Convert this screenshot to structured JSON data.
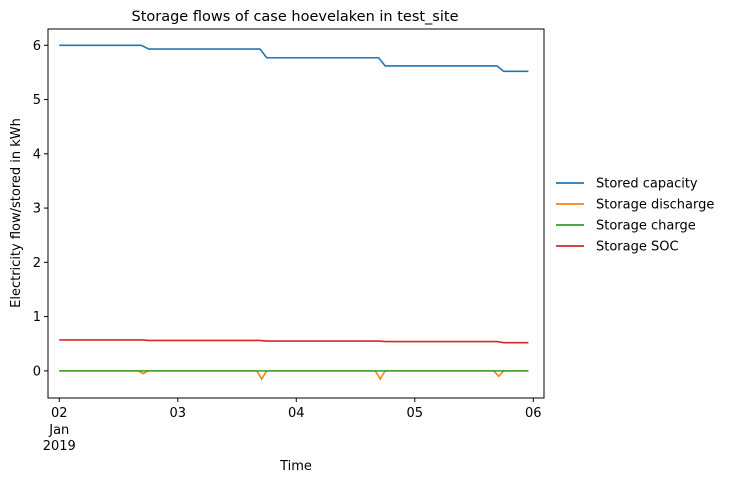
{
  "chart_data": {
    "type": "line",
    "title": "Storage flows of case hoevelaken in test_site",
    "xlabel": "Time",
    "ylabel": "Electricity flow/stored in kWh",
    "ylim": [
      -0.5,
      6.3
    ],
    "xlim": [
      "2019-01-01T21:43",
      "2019-01-06T02:10"
    ],
    "yticks": [
      0,
      1,
      2,
      3,
      4,
      5,
      6
    ],
    "xticks": [
      {
        "x": "2019-01-02T00:00",
        "label": "02"
      },
      {
        "x": "2019-01-03T00:00",
        "label": "03"
      },
      {
        "x": "2019-01-04T00:00",
        "label": "04"
      },
      {
        "x": "2019-01-05T00:00",
        "label": "05"
      },
      {
        "x": "2019-01-06T00:00",
        "label": "06"
      }
    ],
    "xtick_sub_labels": [
      "Jan",
      "2019"
    ],
    "grid": false,
    "legend_position": "outside-right",
    "series": [
      {
        "name": "Stored capacity",
        "color": "#1f77b4",
        "points": [
          [
            "2019-01-02T00:00",
            6.0
          ],
          [
            "2019-01-02T16:35",
            6.0
          ],
          [
            "2019-01-02T18:10",
            5.93
          ],
          [
            "2019-01-03T16:40",
            5.93
          ],
          [
            "2019-01-03T18:00",
            5.77
          ],
          [
            "2019-01-04T16:40",
            5.77
          ],
          [
            "2019-01-04T18:00",
            5.62
          ],
          [
            "2019-01-05T16:40",
            5.62
          ],
          [
            "2019-01-05T18:00",
            5.52
          ],
          [
            "2019-01-05T23:00",
            5.52
          ]
        ]
      },
      {
        "name": "Storage discharge",
        "color": "#ff7f0e",
        "points": [
          [
            "2019-01-02T00:00",
            0.0
          ],
          [
            "2019-01-02T16:00",
            0.0
          ],
          [
            "2019-01-02T17:00",
            -0.05
          ],
          [
            "2019-01-02T18:00",
            0.0
          ],
          [
            "2019-01-03T16:00",
            0.0
          ],
          [
            "2019-01-03T17:00",
            -0.15
          ],
          [
            "2019-01-03T18:00",
            0.0
          ],
          [
            "2019-01-04T16:00",
            0.0
          ],
          [
            "2019-01-04T17:00",
            -0.15
          ],
          [
            "2019-01-04T18:00",
            0.0
          ],
          [
            "2019-01-05T16:00",
            0.0
          ],
          [
            "2019-01-05T17:00",
            -0.1
          ],
          [
            "2019-01-05T18:00",
            0.0
          ],
          [
            "2019-01-05T23:00",
            0.0
          ]
        ]
      },
      {
        "name": "Storage charge",
        "color": "#2ca02c",
        "points": [
          [
            "2019-01-02T00:00",
            0.0
          ],
          [
            "2019-01-05T23:00",
            0.0
          ]
        ]
      },
      {
        "name": "Storage SOC",
        "color": "#d62728",
        "points": [
          [
            "2019-01-02T00:00",
            0.57
          ],
          [
            "2019-01-02T17:00",
            0.57
          ],
          [
            "2019-01-02T18:00",
            0.56
          ],
          [
            "2019-01-03T16:40",
            0.56
          ],
          [
            "2019-01-03T18:00",
            0.55
          ],
          [
            "2019-01-04T16:40",
            0.55
          ],
          [
            "2019-01-04T18:00",
            0.54
          ],
          [
            "2019-01-05T16:40",
            0.54
          ],
          [
            "2019-01-05T18:00",
            0.52
          ],
          [
            "2019-01-05T23:00",
            0.52
          ]
        ]
      }
    ]
  }
}
